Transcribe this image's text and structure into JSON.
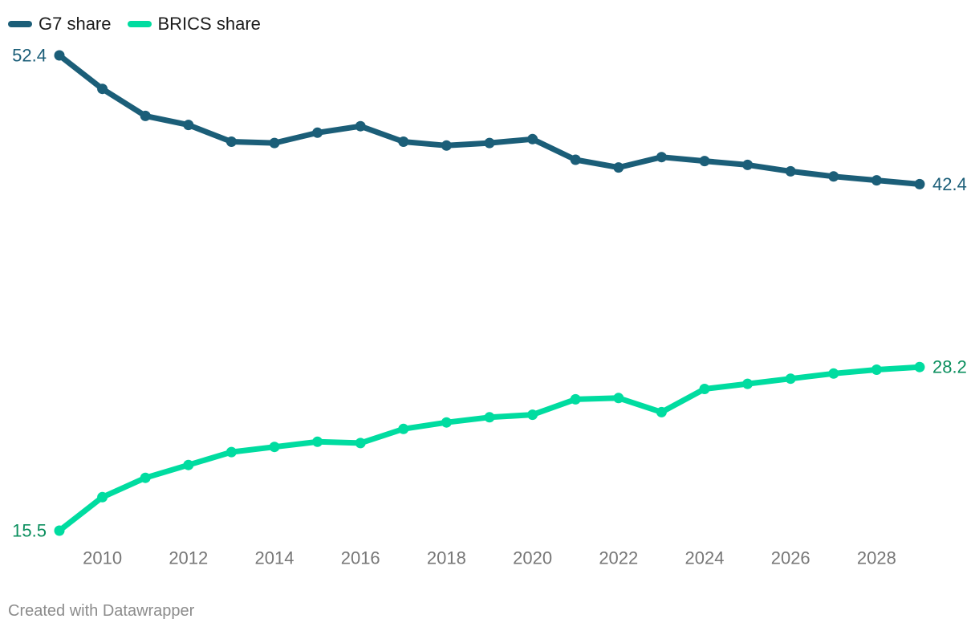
{
  "chart_data": {
    "type": "line",
    "title": "",
    "xlabel": "",
    "ylabel": "",
    "x": [
      2009,
      2010,
      2011,
      2012,
      2013,
      2014,
      2015,
      2016,
      2017,
      2018,
      2019,
      2020,
      2021,
      2022,
      2023,
      2024,
      2025,
      2026,
      2027,
      2028,
      2029
    ],
    "x_tick_labels": [
      "2010",
      "2012",
      "2014",
      "2016",
      "2018",
      "2020",
      "2022",
      "2024",
      "2026",
      "2028"
    ],
    "x_tick_values": [
      2010,
      2012,
      2014,
      2016,
      2018,
      2020,
      2022,
      2024,
      2026,
      2028
    ],
    "xlim": [
      2009,
      2029
    ],
    "ylim": [
      15.5,
      52.4
    ],
    "grid": false,
    "legend_position": "top-left",
    "series": [
      {
        "name": "G7 share",
        "color": "#1b5e78",
        "values": [
          52.4,
          49.8,
          47.7,
          47.0,
          45.7,
          45.6,
          46.4,
          46.9,
          45.7,
          45.4,
          45.6,
          45.9,
          44.3,
          43.7,
          44.5,
          44.2,
          43.9,
          43.4,
          43.0,
          42.7,
          42.4
        ],
        "start_label": "52.4",
        "end_label": "42.4"
      },
      {
        "name": "BRICS share",
        "color": "#00dca0",
        "label_color": "#0b8f5e",
        "values": [
          15.5,
          18.1,
          19.6,
          20.6,
          21.6,
          22.0,
          22.4,
          22.3,
          23.4,
          23.9,
          24.3,
          24.5,
          25.7,
          25.8,
          24.7,
          26.5,
          26.9,
          27.3,
          27.7,
          28.0,
          28.2
        ],
        "start_label": "15.5",
        "end_label": "28.2"
      }
    ]
  },
  "footer": {
    "credit": "Created with Datawrapper"
  },
  "colors": {
    "axis_label": "#777777"
  }
}
